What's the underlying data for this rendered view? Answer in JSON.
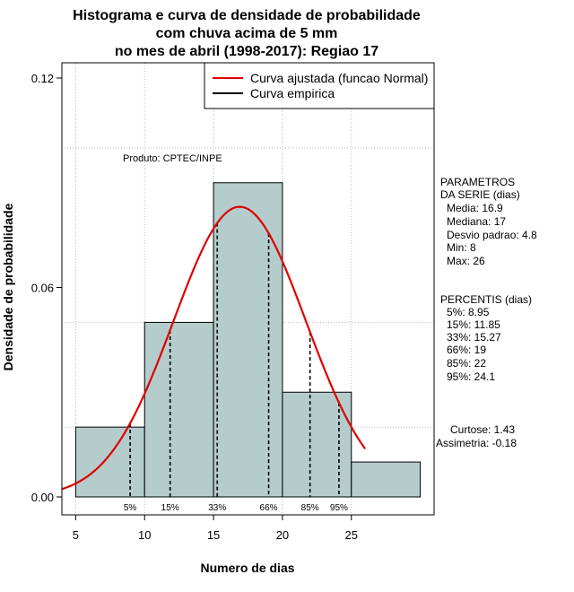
{
  "chart_data": {
    "type": "bar",
    "title_lines": [
      "Histograma e curva de densidade de probabilidade",
      "com chuva acima de 5 mm",
      "no mes de abril (1998-2017): Regiao 17"
    ],
    "xlabel": "Numero de dias",
    "ylabel": "Densidade de probabilidade",
    "xlim": [
      4,
      31
    ],
    "ylim": [
      0,
      0.12
    ],
    "x_ticks": [
      5,
      10,
      15,
      20,
      25
    ],
    "y_ticks": [
      "0.00",
      "0.06",
      "0.12"
    ],
    "bins": [
      {
        "from": 5,
        "to": 10,
        "density": 0.02
      },
      {
        "from": 10,
        "to": 15,
        "density": 0.05
      },
      {
        "from": 15,
        "to": 20,
        "density": 0.09
      },
      {
        "from": 20,
        "to": 25,
        "density": 0.03
      },
      {
        "from": 25,
        "to": 30,
        "density": 0.01
      }
    ],
    "normal_fit": {
      "mean": 16.9,
      "sd": 4.8,
      "x_from": 4,
      "x_to": 26
    },
    "percentile_lines": [
      {
        "label": "5%",
        "x": 8.95
      },
      {
        "label": "15%",
        "x": 11.85
      },
      {
        "label": "33%",
        "x": 15.27
      },
      {
        "label": "66%",
        "x": 19
      },
      {
        "label": "85%",
        "x": 22
      },
      {
        "label": "95%",
        "x": 24.1
      }
    ],
    "legend": [
      {
        "label": "Curva ajustada (funcao Normal)",
        "color": "#e00000"
      },
      {
        "label": "Curva empirica",
        "color": "#000000"
      }
    ],
    "annotation": "Produto: CPTEC/INPE"
  },
  "parametros": {
    "heading1": "PARAMETROS",
    "heading2": "DA SERIE (dias)",
    "lines": [
      "Media: 16.9",
      "Mediana: 17",
      "Desvio padrao: 4.8",
      "Min: 8",
      "Max: 26"
    ]
  },
  "percentis": {
    "heading": "PERCENTIS (dias)",
    "lines": [
      "5%: 8.95",
      "15%: 11.85",
      "33%: 15.27",
      "66%: 19",
      "85%: 22",
      "95%: 24.1"
    ]
  },
  "estatisticas": {
    "lines": [
      "Curtose: 1.43",
      "Assimetria: -0.18"
    ]
  },
  "colors": {
    "bar_fill": "#b5cccc",
    "curve": "#e00000",
    "grid": "#bbbbbb"
  }
}
